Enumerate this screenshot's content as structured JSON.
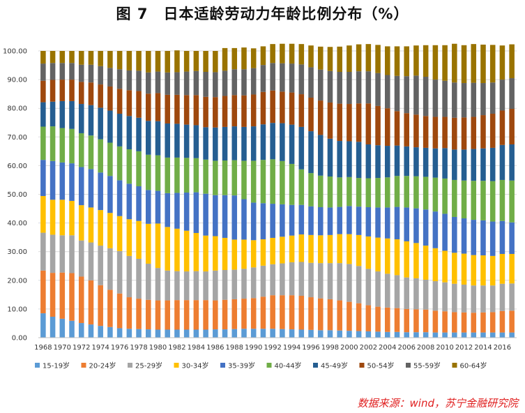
{
  "title": "图 7　日本适龄劳动力年龄比例分布（%）",
  "source": "数据来源：wind，苏宁金融研究院",
  "chart_data": {
    "type": "bar",
    "stacked": true,
    "title": "图 7　日本适龄劳动力年龄比例分布（%）",
    "xlabel": "",
    "ylabel": "",
    "ylim": [
      0,
      100
    ],
    "yticks": [
      "0.00",
      "10.00",
      "20.00",
      "30.00",
      "40.00",
      "50.00",
      "60.00",
      "70.00",
      "80.00",
      "90.00",
      "100.00"
    ],
    "xticks": [
      "1968",
      "1970",
      "1972",
      "1974",
      "1976",
      "1978",
      "1980",
      "1982",
      "1984",
      "1986",
      "1988",
      "1990",
      "1992",
      "1994",
      "1996",
      "1998",
      "2000",
      "2002",
      "2004",
      "2006",
      "2008",
      "2010",
      "2012",
      "2014",
      "2016"
    ],
    "legend_position": "bottom",
    "categories": [
      "1968",
      "1969",
      "1970",
      "1971",
      "1972",
      "1973",
      "1974",
      "1975",
      "1976",
      "1977",
      "1978",
      "1979",
      "1980",
      "1981",
      "1982",
      "1983",
      "1984",
      "1985",
      "1986",
      "1987",
      "1988",
      "1989",
      "1990",
      "1991",
      "1992",
      "1993",
      "1994",
      "1995",
      "1996",
      "1997",
      "1998",
      "1999",
      "2000",
      "2001",
      "2002",
      "2003",
      "2004",
      "2005",
      "2006",
      "2007",
      "2008",
      "2009",
      "2010",
      "2011",
      "2012",
      "2013",
      "2014",
      "2015",
      "2016",
      "2017"
    ],
    "series": [
      {
        "name": "15-19岁",
        "color": "#5b9bd5",
        "values": [
          8.5,
          7.3,
          6.6,
          5.9,
          5.1,
          4.6,
          4.1,
          3.7,
          3.3,
          3.1,
          3.0,
          2.9,
          2.8,
          2.8,
          2.8,
          2.8,
          2.8,
          2.8,
          2.9,
          2.9,
          3.0,
          3.1,
          3.1,
          3.1,
          3.1,
          3.0,
          2.9,
          2.8,
          2.7,
          2.6,
          2.6,
          2.5,
          2.4,
          2.3,
          2.2,
          2.1,
          2.0,
          2.0,
          1.9,
          1.9,
          1.9,
          1.8,
          1.8,
          1.8,
          1.8,
          1.8,
          1.8,
          1.8,
          1.8,
          1.8
        ]
      },
      {
        "name": "20-24岁",
        "color": "#ed7d31",
        "values": [
          14.9,
          15.3,
          16.1,
          16.6,
          16.2,
          15.4,
          14.2,
          13.0,
          12.1,
          11.0,
          10.6,
          10.3,
          10.2,
          10.2,
          10.3,
          10.3,
          10.3,
          10.3,
          10.1,
          10.3,
          10.4,
          10.5,
          10.7,
          11.2,
          11.7,
          11.8,
          11.9,
          11.8,
          11.4,
          11.1,
          10.8,
          10.5,
          10.1,
          9.7,
          9.1,
          8.7,
          8.5,
          8.3,
          8.1,
          8.0,
          7.9,
          7.6,
          7.4,
          7.1,
          7.0,
          6.9,
          7.0,
          7.1,
          7.5,
          7.6
        ]
      },
      {
        "name": "25-29岁",
        "color": "#a5a5a5",
        "values": [
          13.2,
          13.3,
          13.0,
          13.2,
          12.6,
          13.2,
          13.8,
          14.5,
          14.8,
          14.4,
          13.9,
          12.6,
          11.3,
          10.4,
          10.1,
          10.0,
          10.1,
          10.0,
          10.4,
          10.4,
          10.3,
          10.4,
          10.7,
          10.8,
          10.8,
          11.1,
          11.5,
          11.8,
          12.0,
          12.3,
          12.6,
          13.0,
          13.2,
          13.0,
          12.7,
          12.3,
          11.8,
          11.5,
          11.0,
          10.8,
          10.4,
          10.3,
          10.1,
          9.9,
          9.7,
          9.5,
          9.4,
          9.3,
          9.5,
          9.5
        ]
      },
      {
        "name": "30-34岁",
        "color": "#ffc000",
        "values": [
          12.8,
          12.2,
          12.4,
          12.0,
          12.3,
          12.2,
          12.4,
          12.3,
          12.2,
          12.8,
          13.2,
          13.9,
          15.5,
          15.2,
          14.8,
          14.2,
          13.3,
          12.5,
          12.0,
          11.2,
          10.5,
          10.2,
          9.5,
          9.2,
          9.2,
          9.3,
          9.3,
          9.6,
          9.7,
          9.7,
          9.8,
          10.1,
          10.4,
          10.8,
          11.3,
          11.8,
          12.3,
          12.5,
          12.6,
          12.3,
          11.9,
          11.5,
          11.0,
          10.8,
          10.8,
          10.6,
          10.5,
          10.3,
          10.4,
          10.3
        ]
      },
      {
        "name": "35-39岁",
        "color": "#4472c4",
        "values": [
          12.6,
          13.5,
          13.0,
          13.1,
          13.3,
          13.4,
          13.1,
          12.9,
          12.5,
          12.4,
          12.1,
          11.8,
          11.4,
          11.8,
          12.5,
          13.3,
          14.2,
          14.6,
          14.3,
          14.9,
          15.4,
          14.1,
          13.1,
          12.6,
          11.9,
          11.3,
          10.7,
          10.3,
          10.0,
          9.8,
          9.6,
          9.5,
          9.8,
          9.9,
          10.2,
          10.5,
          10.8,
          11.3,
          11.8,
          12.1,
          12.6,
          12.8,
          12.9,
          12.5,
          12.3,
          12.3,
          12.2,
          12.0,
          11.5,
          11.0
        ]
      },
      {
        "name": "40-44岁",
        "color": "#70ad47",
        "values": [
          11.6,
          12.1,
          12.0,
          12.0,
          11.8,
          11.7,
          11.6,
          11.6,
          11.8,
          12.0,
          12.2,
          12.3,
          12.4,
          12.4,
          12.3,
          12.1,
          11.9,
          11.9,
          12.0,
          12.1,
          12.3,
          13.4,
          14.6,
          15.1,
          15.5,
          15.1,
          14.3,
          12.4,
          11.6,
          11.0,
          10.8,
          10.3,
          10.1,
          10.0,
          10.1,
          10.3,
          10.5,
          10.8,
          11.0,
          11.2,
          11.4,
          11.8,
          12.3,
          12.9,
          13.2,
          13.6,
          13.8,
          14.1,
          14.3,
          14.6
        ]
      },
      {
        "name": "45-49岁",
        "color": "#255e91",
        "values": [
          8.5,
          8.6,
          9.4,
          9.7,
          10.2,
          10.6,
          11.0,
          11.2,
          11.4,
          11.6,
          11.7,
          11.8,
          11.9,
          11.9,
          11.8,
          11.6,
          11.5,
          11.3,
          11.6,
          11.7,
          11.8,
          11.8,
          12.0,
          12.4,
          12.7,
          13.2,
          13.7,
          14.8,
          14.6,
          14.2,
          13.2,
          12.7,
          12.5,
          12.6,
          11.8,
          11.4,
          11.0,
          10.6,
          10.3,
          10.1,
          10.1,
          10.2,
          10.6,
          10.6,
          10.8,
          11.1,
          11.3,
          11.6,
          12.2,
          12.6
        ]
      },
      {
        "name": "50-54岁",
        "color": "#9e480e",
        "values": [
          7.5,
          7.6,
          7.5,
          7.5,
          7.7,
          7.9,
          8.1,
          8.4,
          8.7,
          9.0,
          9.3,
          9.5,
          9.8,
          10.0,
          10.1,
          10.3,
          10.5,
          10.6,
          10.6,
          10.8,
          10.9,
          11.0,
          11.1,
          11.3,
          11.3,
          11.0,
          11.2,
          11.4,
          11.7,
          12.0,
          12.6,
          13.0,
          13.0,
          13.4,
          14.3,
          13.7,
          13.1,
          12.0,
          11.6,
          11.4,
          11.1,
          11.0,
          10.9,
          11.1,
          11.2,
          11.2,
          11.6,
          11.9,
          12.0,
          12.4
        ]
      },
      {
        "name": "55-59岁",
        "color": "#636363",
        "values": [
          6.0,
          5.9,
          5.8,
          5.8,
          6.0,
          6.2,
          6.4,
          6.5,
          6.8,
          6.9,
          7.1,
          7.4,
          7.5,
          7.8,
          7.9,
          8.2,
          8.4,
          8.7,
          8.7,
          8.8,
          9.0,
          9.1,
          9.2,
          9.4,
          9.6,
          9.9,
          10.1,
          10.4,
          10.6,
          10.8,
          11.0,
          11.1,
          11.2,
          11.2,
          11.2,
          11.5,
          11.6,
          12.3,
          12.9,
          13.6,
          13.7,
          13.0,
          12.6,
          12.3,
          12.0,
          11.9,
          11.2,
          10.9,
          10.8,
          10.7
        ]
      },
      {
        "name": "60-64岁",
        "color": "#997300",
        "values": [
          4.4,
          4.2,
          4.2,
          4.2,
          4.8,
          4.8,
          5.3,
          5.9,
          6.4,
          6.8,
          6.9,
          7.5,
          7.2,
          7.5,
          7.6,
          7.2,
          7.0,
          7.3,
          7.4,
          7.9,
          7.4,
          7.6,
          6.9,
          6.5,
          6.6,
          6.8,
          6.9,
          7.1,
          7.6,
          8.0,
          8.4,
          8.8,
          9.2,
          9.4,
          9.5,
          9.8,
          10.0,
          10.3,
          10.4,
          10.5,
          11.0,
          12.0,
          12.4,
          13.5,
          13.2,
          13.5,
          13.4,
          13.1,
          11.9,
          11.8
        ]
      }
    ]
  }
}
